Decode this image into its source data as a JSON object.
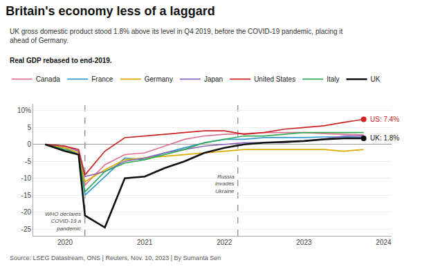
{
  "chart_data": {
    "type": "line",
    "title": "Britain's economy less of a laggard",
    "subtitle": "UK gross domestic product stood 1.8% above its level in Q4 2019, before the COVID-19 pandemic, placing it\nahead of Germany.",
    "ylabel": "Real GDP rebased to end-2019.",
    "source": "Source: LSEG Datastream, ONS | Reuters, Nov. 10, 2023 | By Sumanta Sen",
    "x": [
      2019.75,
      2020.0,
      2020.17,
      2020.25,
      2020.5,
      2020.75,
      2021.0,
      2021.25,
      2021.5,
      2021.75,
      2022.0,
      2022.25,
      2022.5,
      2022.75,
      2023.0,
      2023.25,
      2023.5,
      2023.75
    ],
    "series": [
      {
        "name": "Canada",
        "color": "#e07090",
        "values": [
          0,
          -0.5,
          -2,
          -12,
          -6,
          -3,
          -2.5,
          -0.5,
          1.5,
          2.5,
          3,
          3.2,
          3.5,
          3.5,
          3.5,
          3.2,
          3.0,
          2.8
        ]
      },
      {
        "name": "France",
        "color": "#3399cc",
        "values": [
          0,
          -1,
          -3,
          -15,
          -9.5,
          -4,
          -4.5,
          -2.5,
          -1,
          0.5,
          1.5,
          1.5,
          2,
          2,
          2,
          2.2,
          2.2,
          2.0
        ]
      },
      {
        "name": "Germany",
        "color": "#ddaa00",
        "values": [
          0,
          -1,
          -2.5,
          -11,
          -7.5,
          -4.5,
          -4,
          -3.5,
          -3,
          -2.5,
          -2,
          -1.5,
          -1.5,
          -1.5,
          -1.5,
          -1.5,
          -2,
          -1.5
        ]
      },
      {
        "name": "Japan",
        "color": "#8866bb",
        "values": [
          0,
          -0.5,
          -2,
          -9.5,
          -8,
          -5,
          -4,
          -2.5,
          -1.5,
          -0.5,
          0,
          0.5,
          0.5,
          0.5,
          1,
          1.5,
          2.5,
          2.5
        ]
      },
      {
        "name": "United States",
        "color": "#cc2222",
        "values": [
          0,
          -0.5,
          -1.5,
          -9,
          -2,
          2,
          2.5,
          3,
          3.5,
          4,
          4,
          3,
          3.5,
          4.5,
          5,
          5.5,
          6.5,
          7.4
        ]
      },
      {
        "name": "Italy",
        "color": "#33aa55",
        "values": [
          0,
          -1.5,
          -3,
          -14,
          -8,
          -5.5,
          -4.5,
          -3,
          -1.5,
          0.5,
          1.5,
          2.5,
          2.5,
          3,
          3.5,
          3.5,
          3.5,
          3.5
        ]
      },
      {
        "name": "UK",
        "color": "#111111",
        "values": [
          0,
          -2,
          -3,
          -21,
          -24.5,
          -10,
          -9.5,
          -7,
          -5,
          -2.5,
          -1,
          0,
          0.5,
          0.8,
          1,
          1.5,
          1.8,
          1.8
        ]
      }
    ],
    "annotations": [
      {
        "text": "WHO declares\nCOVID-19 a\npandemic",
        "x": 2020.25
      },
      {
        "text": "Russia\ninvades\nUkraine",
        "x": 2022.17
      }
    ],
    "end_labels": [
      {
        "series": "United States",
        "label": "US: 7.4%",
        "x": 2023.75,
        "y": 7.4
      },
      {
        "series": "UK",
        "label": "UK: 1.8%",
        "x": 2023.75,
        "y": 1.8
      }
    ],
    "xlim": [
      2019.6,
      2024.1
    ],
    "xticks": [
      2020,
      2021,
      2022,
      2023,
      2024
    ],
    "ylim": [
      -27,
      12
    ],
    "yticks": [
      -25,
      -20,
      -15,
      -10,
      -5,
      0,
      5,
      {
        "value": 10,
        "label": "10%"
      }
    ],
    "grid": true,
    "legend": "top"
  }
}
